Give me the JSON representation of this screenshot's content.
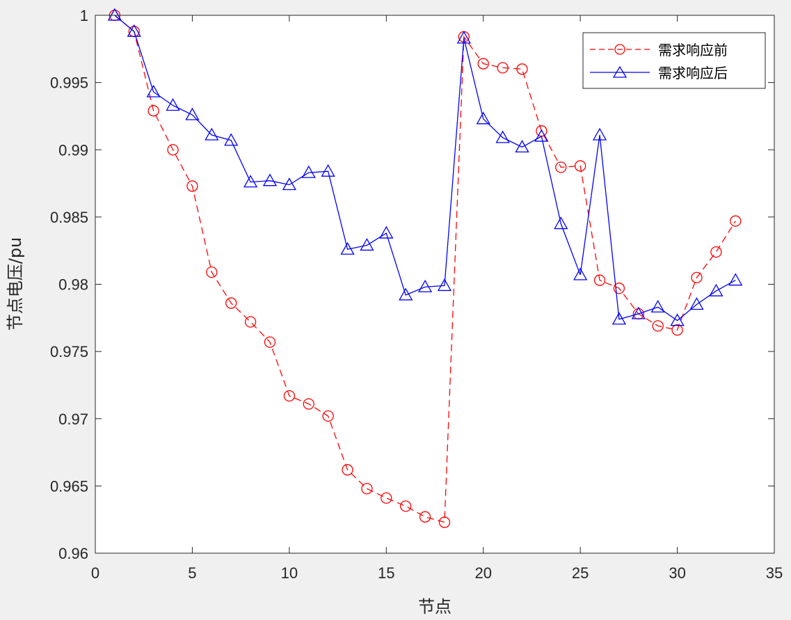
{
  "chart_data": {
    "type": "line",
    "title": "",
    "xlabel": "节点",
    "ylabel": "节点电压/pu",
    "xlim": [
      0,
      35
    ],
    "ylim": [
      0.96,
      1.0
    ],
    "xticks": [
      0,
      5,
      10,
      15,
      20,
      25,
      30,
      35
    ],
    "xtick_labels": [
      "0",
      "5",
      "10",
      "15",
      "20",
      "25",
      "30",
      "35"
    ],
    "yticks": [
      0.96,
      0.965,
      0.97,
      0.975,
      0.98,
      0.985,
      0.99,
      0.995,
      1.0
    ],
    "ytick_labels": [
      "0.96",
      "0.965",
      "0.97",
      "0.975",
      "0.98",
      "0.985",
      "0.99",
      "0.995",
      "1"
    ],
    "grid": false,
    "legend_position": "top-right",
    "x": [
      1,
      2,
      3,
      4,
      5,
      6,
      7,
      8,
      9,
      10,
      11,
      12,
      13,
      14,
      15,
      16,
      17,
      18,
      19,
      20,
      21,
      22,
      23,
      24,
      25,
      26,
      27,
      28,
      29,
      30,
      31,
      32,
      33
    ],
    "series": [
      {
        "name": "需求响应前",
        "color": "#ff0000",
        "line_style": "dashed",
        "marker": "circle",
        "values": [
          1.0,
          0.9988,
          0.9929,
          0.99,
          0.9873,
          0.9809,
          0.9786,
          0.9772,
          0.9757,
          0.9717,
          0.9711,
          0.9702,
          0.9662,
          0.9648,
          0.9641,
          0.9635,
          0.9627,
          0.9623,
          0.9984,
          0.9964,
          0.9961,
          0.996,
          0.9914,
          0.9887,
          0.9888,
          0.9803,
          0.9797,
          0.9778,
          0.9769,
          0.9766,
          0.9805,
          0.9824,
          0.9847
        ]
      },
      {
        "name": "需求响应后",
        "color": "#0000ff",
        "line_style": "solid",
        "marker": "triangle",
        "values": [
          1.0,
          0.9988,
          0.9943,
          0.9933,
          0.9926,
          0.9911,
          0.9907,
          0.9876,
          0.9877,
          0.9874,
          0.9883,
          0.9884,
          0.9826,
          0.9829,
          0.9838,
          0.9792,
          0.9798,
          0.9799,
          0.9983,
          0.9923,
          0.9909,
          0.9902,
          0.991,
          0.9845,
          0.9807,
          0.9911,
          0.9774,
          0.9778,
          0.9783,
          0.9773,
          0.9785,
          0.9795,
          0.9803
        ]
      }
    ]
  }
}
